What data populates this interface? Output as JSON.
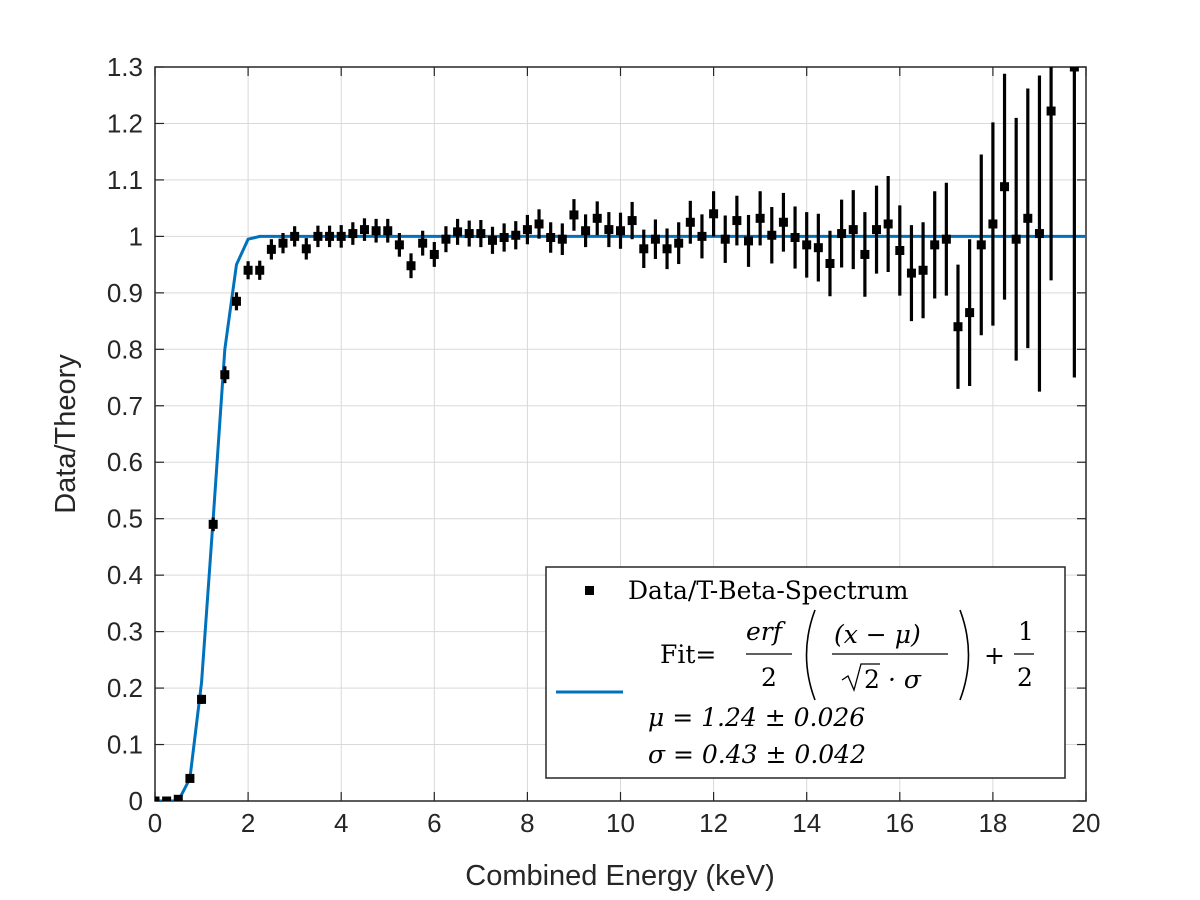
{
  "chart_data": {
    "type": "scatter",
    "xlabel": "Combined Energy (keV)",
    "ylabel": "Data/Theory",
    "xlim": [
      0,
      20
    ],
    "ylim": [
      0,
      1.3
    ],
    "xticks": [
      "0",
      "2",
      "4",
      "6",
      "8",
      "10",
      "12",
      "14",
      "16",
      "18",
      "20"
    ],
    "yticks": [
      "0",
      "0.1",
      "0.2",
      "0.3",
      "0.4",
      "0.5",
      "0.6",
      "0.7",
      "0.8",
      "0.9",
      "1",
      "1.1",
      "1.2",
      "1.3"
    ],
    "grid": true,
    "legend_position": "bottom-right",
    "colors": {
      "data": "#000000",
      "fit": "#0072BD"
    },
    "series": [
      {
        "name": "Data/T-Beta-Spectrum",
        "kind": "errorbar",
        "x": [
          0.0,
          0.25,
          0.5,
          0.75,
          1.0,
          1.25,
          1.5,
          1.75,
          2.0,
          2.25,
          2.5,
          2.75,
          3.0,
          3.25,
          3.5,
          3.75,
          4.0,
          4.25,
          4.5,
          4.75,
          5.0,
          5.25,
          5.5,
          5.75,
          6.0,
          6.25,
          6.5,
          6.75,
          7.0,
          7.25,
          7.5,
          7.75,
          8.0,
          8.25,
          8.5,
          8.75,
          9.0,
          9.25,
          9.5,
          9.75,
          10.0,
          10.25,
          10.5,
          10.75,
          11.0,
          11.25,
          11.5,
          11.75,
          12.0,
          12.25,
          12.5,
          12.75,
          13.0,
          13.25,
          13.5,
          13.75,
          14.0,
          14.25,
          14.5,
          14.75,
          15.0,
          15.25,
          15.5,
          15.75,
          16.0,
          16.25,
          16.5,
          16.75,
          17.0,
          17.25,
          17.5,
          17.75,
          18.0,
          18.25,
          18.5,
          18.75,
          19.0,
          19.25,
          19.75
        ],
        "y": [
          0.0,
          0.0,
          0.003,
          0.04,
          0.18,
          0.49,
          0.755,
          0.885,
          0.94,
          0.94,
          0.977,
          0.988,
          1.0,
          0.978,
          1.0,
          1.0,
          1.0,
          1.005,
          1.012,
          1.01,
          1.01,
          0.985,
          0.948,
          0.988,
          0.968,
          0.995,
          1.008,
          1.005,
          1.005,
          0.993,
          0.998,
          1.002,
          1.012,
          1.022,
          0.998,
          0.995,
          1.038,
          1.01,
          1.032,
          1.012,
          1.01,
          1.028,
          0.978,
          0.995,
          0.978,
          0.988,
          1.025,
          1.0,
          1.04,
          0.995,
          1.028,
          0.992,
          1.032,
          1.002,
          1.025,
          0.998,
          0.985,
          0.98,
          0.952,
          1.005,
          1.012,
          0.968,
          1.012,
          1.022,
          0.975,
          0.935,
          0.94,
          0.985,
          0.995,
          0.84,
          0.865,
          0.985,
          1.022,
          1.088,
          0.995,
          1.032,
          1.005,
          1.222,
          1.3
        ],
        "err": [
          0.002,
          0.002,
          0.003,
          0.006,
          0.008,
          0.012,
          0.015,
          0.016,
          0.016,
          0.017,
          0.018,
          0.018,
          0.018,
          0.019,
          0.019,
          0.019,
          0.02,
          0.02,
          0.02,
          0.021,
          0.021,
          0.021,
          0.022,
          0.022,
          0.022,
          0.023,
          0.023,
          0.023,
          0.024,
          0.024,
          0.025,
          0.025,
          0.026,
          0.026,
          0.027,
          0.028,
          0.028,
          0.029,
          0.03,
          0.031,
          0.032,
          0.033,
          0.034,
          0.035,
          0.036,
          0.037,
          0.038,
          0.039,
          0.04,
          0.042,
          0.044,
          0.046,
          0.048,
          0.05,
          0.052,
          0.055,
          0.058,
          0.06,
          0.058,
          0.06,
          0.07,
          0.075,
          0.078,
          0.085,
          0.08,
          0.085,
          0.085,
          0.095,
          0.1,
          0.11,
          0.13,
          0.16,
          0.18,
          0.2,
          0.215,
          0.23,
          0.28,
          0.3,
          0.55
        ]
      },
      {
        "name": "Fit",
        "kind": "line",
        "x": [
          0.0,
          0.25,
          0.5,
          0.75,
          1.0,
          1.25,
          1.5,
          1.75,
          2.0,
          2.25,
          2.5,
          3.0,
          4.0,
          6.0,
          8.0,
          10.0,
          12.0,
          14.0,
          16.0,
          18.0,
          20.0
        ],
        "y": [
          0.0,
          0.0,
          0.0,
          0.04,
          0.21,
          0.5,
          0.8,
          0.95,
          0.995,
          1.0,
          1.0,
          1.0,
          1.0,
          1.0,
          1.0,
          1.0,
          1.0,
          1.0,
          1.0,
          1.0,
          1.0
        ]
      }
    ]
  },
  "legend": {
    "data_label": "Data/T-Beta-Spectrum",
    "fit_prefix": "Fit=",
    "fit_formula": {
      "erf_num": "erf",
      "erf_den": "2",
      "arg_num": "(x − μ)",
      "arg_den_sqrt": "2",
      "arg_den_rest": "· σ",
      "plus": "+",
      "half_num": "1",
      "half_den": "2"
    },
    "mu_line": "μ = 1.24 ± 0.026",
    "sigma_line": "σ = 0.43 ± 0.042"
  }
}
